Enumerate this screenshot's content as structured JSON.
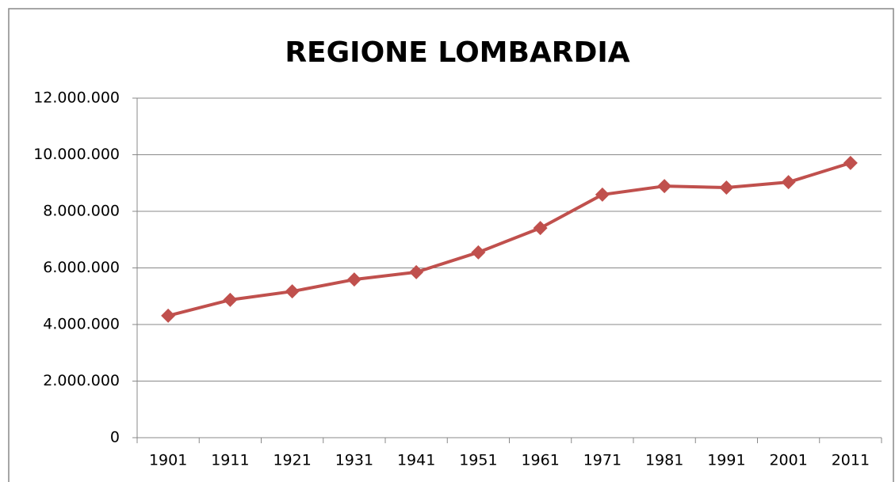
{
  "chart_data": {
    "type": "line",
    "title": "REGIONE LOMBARDIA",
    "categories": [
      "1901",
      "1911",
      "1921",
      "1931",
      "1941",
      "1951",
      "1961",
      "1971",
      "1981",
      "1991",
      "2001",
      "2011"
    ],
    "series": [
      {
        "color": "#c0504d",
        "values": [
          4310000,
          4870000,
          5170000,
          5590000,
          5850000,
          6550000,
          7410000,
          8590000,
          8890000,
          8840000,
          9030000,
          9710000
        ]
      }
    ],
    "ylim": [
      0,
      12000000
    ],
    "yticks": [
      0,
      {
        "value": 2000000,
        "label": "2.000.000"
      },
      {
        "value": 4000000,
        "label": "4.000.000"
      },
      {
        "value": 6000000,
        "label": "6.000.000"
      },
      {
        "value": 8000000,
        "label": "8.000.000"
      },
      {
        "value": 10000000,
        "label": "10.000.000"
      },
      {
        "value": 12000000,
        "label": "12.000.000"
      }
    ],
    "grid": true
  }
}
